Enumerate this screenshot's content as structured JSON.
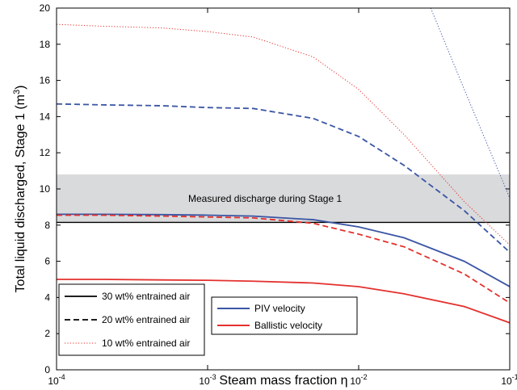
{
  "chart_data": {
    "type": "line",
    "x_label": "Steam mass fraction η",
    "y_label": "Total liquid discharged, Stage 1 (m",
    "y_label_sup": "3",
    "y_label_end": ")",
    "x_log": true,
    "xlim": [
      0.0001,
      0.1
    ],
    "xticks": [
      {
        "value": 0.0001,
        "label": "10",
        "exponent": "-4"
      },
      {
        "value": 0.001,
        "label": "10",
        "exponent": "-3"
      },
      {
        "value": 0.01,
        "label": "10",
        "exponent": "-2"
      },
      {
        "value": 0.1,
        "label": "10",
        "exponent": "-1"
      }
    ],
    "ylim": [
      0,
      20
    ],
    "yticks": [
      0,
      2,
      4,
      6,
      8,
      10,
      12,
      14,
      16,
      18,
      20
    ],
    "band": {
      "range": [
        8.15,
        10.8
      ],
      "color": "#d9dadc",
      "line_color": "#000000",
      "label": "Measured discharge during Stage 1"
    },
    "series": [
      {
        "color": "#3a55a4",
        "dash": "solid",
        "x": [
          0.0001,
          0.0002,
          0.0005,
          0.001,
          0.002,
          0.005,
          0.01,
          0.02,
          0.05,
          0.1
        ],
        "values": [
          8.6,
          8.6,
          8.58,
          8.55,
          8.5,
          8.3,
          7.9,
          7.3,
          6.0,
          4.6
        ]
      },
      {
        "color": "#e3312d",
        "dash": "dashed",
        "x": [
          0.0001,
          0.0002,
          0.0005,
          0.001,
          0.002,
          0.005,
          0.01,
          0.02,
          0.05,
          0.1
        ],
        "values": [
          8.55,
          8.55,
          8.5,
          8.45,
          8.4,
          8.1,
          7.5,
          6.8,
          5.3,
          3.7
        ]
      },
      {
        "color": "#e3312d",
        "dash": "solid",
        "x": [
          0.0001,
          0.0002,
          0.0005,
          0.001,
          0.002,
          0.005,
          0.01,
          0.02,
          0.05,
          0.1
        ],
        "values": [
          5.0,
          5.0,
          4.97,
          4.95,
          4.9,
          4.8,
          4.6,
          4.2,
          3.5,
          2.6
        ]
      },
      {
        "color": "#3a55a4",
        "dash": "dashed",
        "x": [
          0.0001,
          0.0002,
          0.0005,
          0.001,
          0.002,
          0.005,
          0.01,
          0.02,
          0.05,
          0.1
        ],
        "values": [
          14.7,
          14.65,
          14.6,
          14.5,
          14.45,
          13.9,
          12.9,
          11.3,
          8.8,
          6.5
        ]
      },
      {
        "color": "#e3312d",
        "dash": "dotted",
        "x": [
          0.0001,
          0.0002,
          0.0005,
          0.001,
          0.002,
          0.005,
          0.01,
          0.02,
          0.05,
          0.1
        ],
        "values": [
          19.1,
          19.0,
          18.9,
          18.7,
          18.4,
          17.3,
          15.5,
          13.0,
          9.3,
          6.9
        ]
      },
      {
        "color": "#3a55a4",
        "dash": "dotted",
        "x": [
          0.03,
          0.05,
          0.1
        ],
        "values": [
          20,
          15.5,
          9.5
        ]
      }
    ],
    "legend_styles": [
      {
        "name": "30 wt% entrained air",
        "dash": "solid",
        "color": "#000000"
      },
      {
        "name": "20 wt% entrained air",
        "dash": "dashed",
        "color": "#000000"
      },
      {
        "name": "10 wt% entrained air",
        "dash": "dotted",
        "color": "#e3312d"
      }
    ],
    "legend_colors": [
      {
        "name": "PIV velocity",
        "color": "#3a55a4"
      },
      {
        "name": "Ballistic velocity",
        "color": "#e3312d"
      }
    ]
  }
}
